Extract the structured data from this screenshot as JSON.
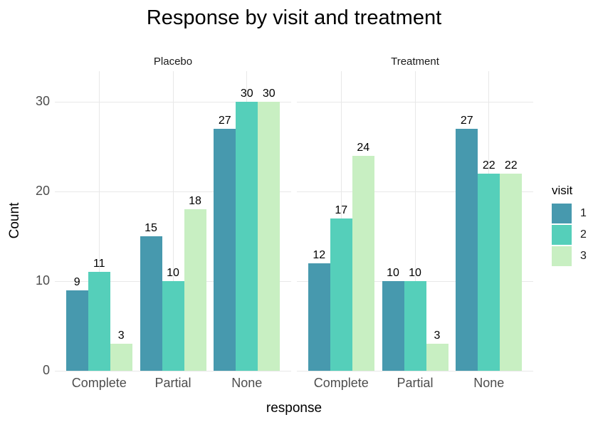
{
  "title": "Response by visit and treatment",
  "x_axis": {
    "label": "response",
    "tick_labels": [
      "Complete",
      "Partial",
      "None"
    ]
  },
  "y_axis": {
    "label": "Count",
    "tick_labels": [
      "0",
      "10",
      "20",
      "30"
    ],
    "tick_values": [
      0,
      10,
      20,
      30
    ]
  },
  "legend": {
    "title": "visit",
    "position": "right",
    "entries": [
      {
        "label": "1",
        "color": "#4799ae"
      },
      {
        "label": "2",
        "color": "#55cfba"
      },
      {
        "label": "3",
        "color": "#c8efc2"
      }
    ]
  },
  "colors": {
    "visit_1": "#4799ae",
    "visit_2": "#55cfba",
    "visit_3": "#c8efc2",
    "gridline": "#e8e8e8",
    "axis_text": "#4d4d4d",
    "background": "#ffffff"
  },
  "chart_data": {
    "type": "bar",
    "title": "Response by visit and treatment",
    "xlabel": "response",
    "ylabel": "Count",
    "ylim": [
      0,
      33.4
    ],
    "y_gridlines": [
      0,
      10,
      20,
      30
    ],
    "grid": "major",
    "bar_value_labels": true,
    "legend_title": "visit",
    "legend_position": "right",
    "facets": [
      {
        "label": "Placebo",
        "categories": [
          "Complete",
          "Partial",
          "None"
        ],
        "series": [
          {
            "name": "1",
            "color": "#4799ae",
            "values": [
              9,
              15,
              27
            ]
          },
          {
            "name": "2",
            "color": "#55cfba",
            "values": [
              11,
              10,
              30
            ]
          },
          {
            "name": "3",
            "color": "#c8efc2",
            "values": [
              3,
              18,
              30
            ]
          }
        ]
      },
      {
        "label": "Treatment",
        "categories": [
          "Complete",
          "Partial",
          "None"
        ],
        "series": [
          {
            "name": "1",
            "color": "#4799ae",
            "values": [
              12,
              10,
              27
            ]
          },
          {
            "name": "2",
            "color": "#55cfba",
            "values": [
              17,
              10,
              22
            ]
          },
          {
            "name": "3",
            "color": "#c8efc2",
            "values": [
              24,
              3,
              22
            ]
          }
        ]
      }
    ]
  }
}
